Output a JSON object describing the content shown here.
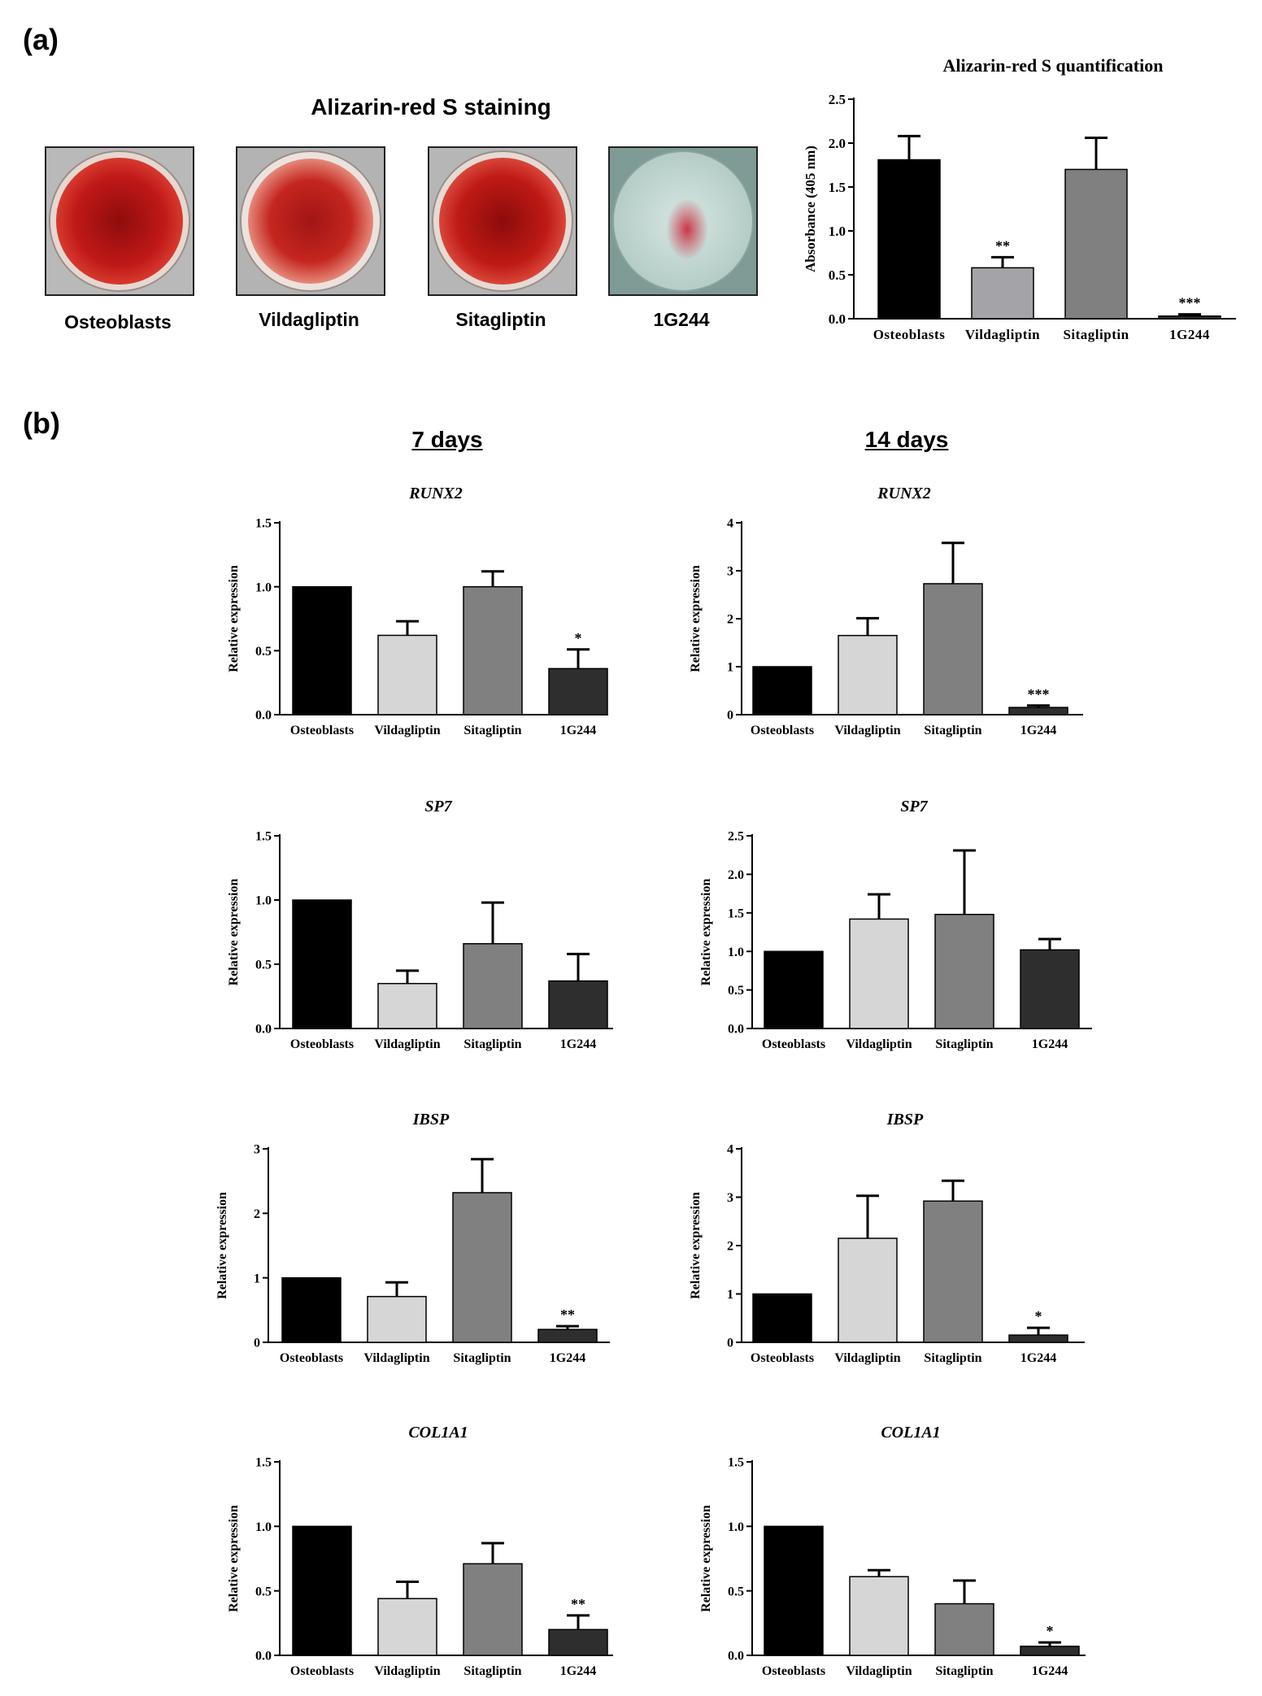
{
  "panels": {
    "a_label": "(a)",
    "b_label": "(b)"
  },
  "staining": {
    "title": "Alizarin-red S staining",
    "dishes": [
      {
        "label": "Osteoblasts",
        "stain": "heavy"
      },
      {
        "label": "Vildagliptin",
        "stain": "heavy"
      },
      {
        "label": "Sitagliptin",
        "stain": "heavy"
      },
      {
        "label": "1G244",
        "stain": "light"
      }
    ]
  },
  "columns": {
    "left": "7 days",
    "right": "14 days"
  },
  "colors": {
    "osteoblasts": "#000000",
    "vildagliptin_a": "#a4a4a8",
    "vildagliptin": "#d6d6d6",
    "sitagliptin": "#808080",
    "g244": "#2e2e2e"
  },
  "chart_data": [
    {
      "id": "quant",
      "type": "bar",
      "title": "Alizarin-red S quantification",
      "ylabel": "Absorbance (405 nm)",
      "ylim": [
        0,
        2.5
      ],
      "ticks": [
        "0.0",
        "0.5",
        "1.0",
        "1.5",
        "2.0",
        "2.5"
      ],
      "categories": [
        "Osteoblasts",
        "Vildagliptin",
        "Sitagliptin",
        "1G244"
      ],
      "values": [
        1.81,
        0.58,
        1.7,
        0.03
      ],
      "errors": [
        0.27,
        0.12,
        0.36,
        0.02
      ],
      "annotations": [
        "",
        "**",
        "",
        "***"
      ]
    },
    {
      "id": "runx2_7",
      "type": "bar",
      "title": "RUNX2",
      "ylabel": "Relative expression",
      "ylim": [
        0,
        1.5
      ],
      "ticks": [
        "0.0",
        "0.5",
        "1.0",
        "1.5"
      ],
      "categories": [
        "Osteoblasts",
        "Vildagliptin",
        "Sitagliptin",
        "1G244"
      ],
      "values": [
        1.0,
        0.62,
        1.0,
        0.36
      ],
      "errors": [
        0,
        0.11,
        0.12,
        0.15
      ],
      "annotations": [
        "",
        "",
        "",
        "*"
      ]
    },
    {
      "id": "runx2_14",
      "type": "bar",
      "title": "RUNX2",
      "ylabel": "Relative expression",
      "ylim": [
        0,
        4
      ],
      "ticks": [
        "0",
        "1",
        "2",
        "3",
        "4"
      ],
      "categories": [
        "Osteoblasts",
        "Vildagliptin",
        "Sitagliptin",
        "1G244"
      ],
      "values": [
        1.0,
        1.65,
        2.73,
        0.15
      ],
      "errors": [
        0,
        0.36,
        0.85,
        0.04
      ],
      "annotations": [
        "",
        "",
        "",
        "***"
      ]
    },
    {
      "id": "sp7_7",
      "type": "bar",
      "title": "SP7",
      "ylabel": "Relative expression",
      "ylim": [
        0,
        1.5
      ],
      "ticks": [
        "0.0",
        "0.5",
        "1.0",
        "1.5"
      ],
      "categories": [
        "Osteoblasts",
        "Vildagliptin",
        "Sitagliptin",
        "1G244"
      ],
      "values": [
        1.0,
        0.35,
        0.66,
        0.37
      ],
      "errors": [
        0,
        0.1,
        0.32,
        0.21
      ],
      "annotations": [
        "",
        "",
        "",
        ""
      ]
    },
    {
      "id": "sp7_14",
      "type": "bar",
      "title": "SP7",
      "ylabel": "Relative expression",
      "ylim": [
        0,
        2.5
      ],
      "ticks": [
        "0.0",
        "0.5",
        "1.0",
        "1.5",
        "2.0",
        "2.5"
      ],
      "categories": [
        "Osteoblasts",
        "Vildagliptin",
        "Sitagliptin",
        "1G244"
      ],
      "values": [
        1.0,
        1.42,
        1.48,
        1.02
      ],
      "errors": [
        0,
        0.32,
        0.83,
        0.14
      ],
      "annotations": [
        "",
        "",
        "",
        ""
      ]
    },
    {
      "id": "ibsp_7",
      "type": "bar",
      "title": "IBSP",
      "ylabel": "Relative expression",
      "ylim": [
        0,
        3
      ],
      "ticks": [
        "0",
        "1",
        "2",
        "3"
      ],
      "categories": [
        "Osteoblasts",
        "Vildagliptin",
        "Sitagliptin",
        "1G244"
      ],
      "values": [
        1.0,
        0.71,
        2.32,
        0.2
      ],
      "errors": [
        0,
        0.22,
        0.52,
        0.05
      ],
      "annotations": [
        "",
        "",
        "",
        "**"
      ]
    },
    {
      "id": "ibsp_14",
      "type": "bar",
      "title": "IBSP",
      "ylabel": "Relative expression",
      "ylim": [
        0,
        4
      ],
      "ticks": [
        "0",
        "1",
        "2",
        "3",
        "4"
      ],
      "categories": [
        "Osteoblasts",
        "Vildagliptin",
        "Sitagliptin",
        "1G244"
      ],
      "values": [
        1.0,
        2.15,
        2.92,
        0.15
      ],
      "errors": [
        0,
        0.88,
        0.42,
        0.15
      ],
      "annotations": [
        "",
        "",
        "",
        "*"
      ]
    },
    {
      "id": "col1a1_7",
      "type": "bar",
      "title": "COL1A1",
      "ylabel": "Relative expression",
      "ylim": [
        0,
        1.5
      ],
      "ticks": [
        "0.0",
        "0.5",
        "1.0",
        "1.5"
      ],
      "categories": [
        "Osteoblasts",
        "Vildagliptin",
        "Sitagliptin",
        "1G244"
      ],
      "values": [
        1.0,
        0.44,
        0.71,
        0.2
      ],
      "errors": [
        0,
        0.13,
        0.16,
        0.11
      ],
      "annotations": [
        "",
        "",
        "",
        "**"
      ]
    },
    {
      "id": "col1a1_14",
      "type": "bar",
      "title": "COL1A1",
      "ylabel": "Relative expression",
      "ylim": [
        0,
        1.5
      ],
      "ticks": [
        "0.0",
        "0.5",
        "1.0",
        "1.5"
      ],
      "categories": [
        "Osteoblasts",
        "Vildagliptin",
        "Sitagliptin",
        "1G244"
      ],
      "values": [
        1.0,
        0.61,
        0.4,
        0.07
      ],
      "errors": [
        0,
        0.05,
        0.18,
        0.03
      ],
      "annotations": [
        "",
        "",
        "",
        "*"
      ]
    }
  ]
}
